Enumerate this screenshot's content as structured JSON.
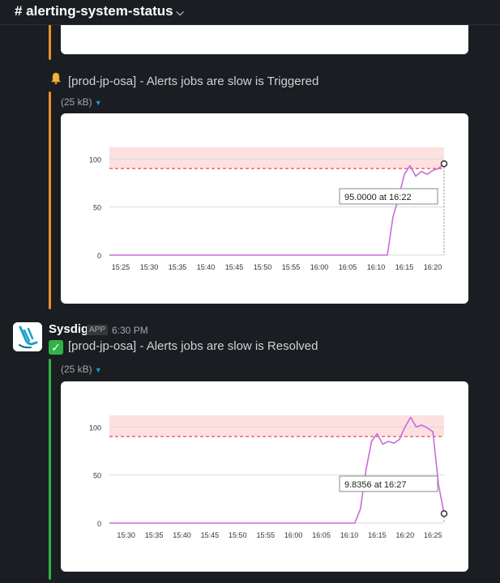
{
  "header": {
    "channel": "# alerting-system-status"
  },
  "messages": [
    {
      "alert_text": "[prod-jp-osa] - Alerts jobs are slow is Triggered",
      "attachment_size": "(25 kB)",
      "bar_color": "#e8912d"
    },
    {
      "author": "Sysdig",
      "badge": "APP",
      "time": "6:30 PM",
      "alert_text": "[prod-jp-osa] - Alerts jobs are slow is Resolved",
      "attachment_size": "(25 kB)",
      "bar_color": "#2fb344"
    }
  ],
  "chart_data": [
    {
      "type": "line",
      "x": [
        "15:23",
        "15:25",
        "15:30",
        "15:35",
        "15:40",
        "15:45",
        "15:50",
        "15:55",
        "16:00",
        "16:05",
        "16:10",
        "16:11",
        "16:12",
        "16:13",
        "16:14",
        "16:15",
        "16:16",
        "16:17",
        "16:18",
        "16:19",
        "16:20",
        "16:21",
        "16:22"
      ],
      "y": [
        0,
        0,
        0,
        0,
        0,
        0,
        0,
        0,
        0,
        0,
        0,
        0,
        0,
        40,
        60,
        84,
        93,
        82,
        87,
        84,
        88,
        90,
        95
      ],
      "xticks": [
        "15:25",
        "15:30",
        "15:35",
        "15:40",
        "15:45",
        "15:50",
        "15:55",
        "16:00",
        "16:05",
        "16:10",
        "16:15",
        "16:20"
      ],
      "yticks": [
        0,
        50,
        100
      ],
      "ylim": [
        0,
        112
      ],
      "threshold": 90,
      "tooltip": "95.0000 at 16:22",
      "line_color": "#c86cd8",
      "threshold_color": "#ea4b4b"
    },
    {
      "type": "line",
      "x": [
        "15:27",
        "15:30",
        "15:35",
        "15:40",
        "15:45",
        "15:50",
        "15:55",
        "16:00",
        "16:05",
        "16:10",
        "16:11",
        "16:12",
        "16:13",
        "16:14",
        "16:15",
        "16:16",
        "16:17",
        "16:18",
        "16:19",
        "16:20",
        "16:21",
        "16:22",
        "16:23",
        "16:24",
        "16:25",
        "16:26",
        "16:27"
      ],
      "y": [
        0,
        0,
        0,
        0,
        0,
        0,
        0,
        0,
        0,
        0,
        0,
        15,
        55,
        85,
        93,
        82,
        85,
        83,
        87,
        100,
        110,
        100,
        102,
        99,
        95,
        40,
        9.8356
      ],
      "xticks": [
        "15:30",
        "15:35",
        "15:40",
        "15:45",
        "15:50",
        "15:55",
        "16:00",
        "16:05",
        "16:10",
        "16:15",
        "16:20",
        "16:25"
      ],
      "yticks": [
        0,
        50,
        100
      ],
      "ylim": [
        0,
        112
      ],
      "threshold": 90,
      "tooltip": "9.8356 at 16:27",
      "line_color": "#c86cd8",
      "threshold_color": "#ea4b4b"
    }
  ]
}
